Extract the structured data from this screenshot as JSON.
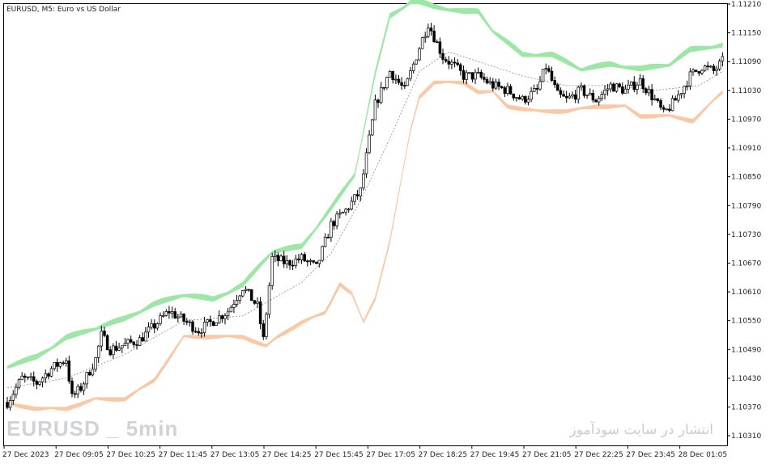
{
  "chart_title": "EURUSD, M5:  Euro vs US Dollar",
  "watermark_left": "EURUSD _ 5min",
  "watermark_right": "انتشار در سایت سودآموز",
  "colors": {
    "upper_band": "#9de6a6",
    "lower_band": "#f9c8a6",
    "candle": "#000000",
    "midline": "#8a8a8a",
    "frame": "#000000"
  },
  "chart_data": {
    "type": "candlestick",
    "symbol": "EURUSD",
    "timeframe": "M5",
    "ylim": [
      1.1029,
      1.1121
    ],
    "y_ticks": [
      1.1121,
      1.1115,
      1.1109,
      1.1103,
      1.1097,
      1.1091,
      1.1085,
      1.1079,
      1.1073,
      1.1067,
      1.1061,
      1.1055,
      1.1049,
      1.1043,
      1.1037,
      1.1031
    ],
    "x_ticks": [
      "27 Dec 2023",
      "27 Dec 09:05",
      "27 Dec 10:25",
      "27 Dec 11:45",
      "27 Dec 13:05",
      "27 Dec 14:25",
      "27 Dec 15:45",
      "27 Dec 17:05",
      "27 Dec 18:25",
      "27 Dec 19:45",
      "27 Dec 21:05",
      "27 Dec 22:25",
      "27 Dec 23:45",
      "28 Dec 01:05"
    ],
    "close_path": [
      [
        0,
        1.1038
      ],
      [
        5,
        1.1043
      ],
      [
        10,
        1.1042
      ],
      [
        15,
        1.1045
      ],
      [
        20,
        1.1047
      ],
      [
        22,
        1.1039
      ],
      [
        25,
        1.1041
      ],
      [
        30,
        1.1047
      ],
      [
        32,
        1.1052
      ],
      [
        35,
        1.1049
      ],
      [
        40,
        1.105
      ],
      [
        45,
        1.1051
      ],
      [
        50,
        1.1054
      ],
      [
        55,
        1.1057
      ],
      [
        60,
        1.1055
      ],
      [
        65,
        1.1053
      ],
      [
        70,
        1.1055
      ],
      [
        75,
        1.1057
      ],
      [
        80,
        1.1062
      ],
      [
        85,
        1.1058
      ],
      [
        87,
        1.1051
      ],
      [
        90,
        1.1068
      ],
      [
        95,
        1.1067
      ],
      [
        100,
        1.1068
      ],
      [
        105,
        1.1066
      ],
      [
        110,
        1.1075
      ],
      [
        115,
        1.1078
      ],
      [
        120,
        1.1082
      ],
      [
        125,
        1.11
      ],
      [
        130,
        1.1107
      ],
      [
        135,
        1.1103
      ],
      [
        140,
        1.1112
      ],
      [
        143,
        1.1117
      ],
      [
        148,
        1.111
      ],
      [
        152,
        1.1108
      ],
      [
        155,
        1.1106
      ],
      [
        160,
        1.1106
      ],
      [
        165,
        1.1104
      ],
      [
        170,
        1.1103
      ],
      [
        175,
        1.1101
      ],
      [
        180,
        1.1103
      ],
      [
        183,
        1.1108
      ],
      [
        187,
        1.1102
      ],
      [
        190,
        1.1101
      ],
      [
        195,
        1.1103
      ],
      [
        200,
        1.1101
      ],
      [
        205,
        1.1104
      ],
      [
        210,
        1.1103
      ],
      [
        215,
        1.1105
      ],
      [
        220,
        1.1101
      ],
      [
        223,
        1.1098
      ],
      [
        227,
        1.1101
      ],
      [
        232,
        1.1106
      ],
      [
        236,
        1.1108
      ],
      [
        240,
        1.1107
      ],
      [
        243,
        1.1109
      ]
    ],
    "upper_band": [
      [
        0,
        1.1045
      ],
      [
        10,
        1.1047
      ],
      [
        20,
        1.1051
      ],
      [
        30,
        1.1053
      ],
      [
        40,
        1.1055
      ],
      [
        50,
        1.1058
      ],
      [
        60,
        1.106
      ],
      [
        70,
        1.1059
      ],
      [
        80,
        1.1062
      ],
      [
        90,
        1.1069
      ],
      [
        100,
        1.107
      ],
      [
        110,
        1.1078
      ],
      [
        118,
        1.1085
      ],
      [
        125,
        1.1106
      ],
      [
        130,
        1.1118
      ],
      [
        137,
        1.1121
      ],
      [
        140,
        1.1121
      ],
      [
        145,
        1.112
      ],
      [
        155,
        1.1119
      ],
      [
        160,
        1.1119
      ],
      [
        165,
        1.1115
      ],
      [
        175,
        1.111
      ],
      [
        185,
        1.111
      ],
      [
        195,
        1.1107
      ],
      [
        205,
        1.1108
      ],
      [
        215,
        1.1107
      ],
      [
        225,
        1.1108
      ],
      [
        232,
        1.1111
      ],
      [
        243,
        1.1112
      ]
    ],
    "lower_band": [
      [
        0,
        1.1038
      ],
      [
        10,
        1.1037
      ],
      [
        20,
        1.1037
      ],
      [
        30,
        1.1039
      ],
      [
        40,
        1.1039
      ],
      [
        50,
        1.1043
      ],
      [
        60,
        1.1052
      ],
      [
        70,
        1.1052
      ],
      [
        80,
        1.1052
      ],
      [
        88,
        1.105
      ],
      [
        92,
        1.1052
      ],
      [
        100,
        1.1055
      ],
      [
        108,
        1.1057
      ],
      [
        113,
        1.1063
      ],
      [
        117,
        1.1061
      ],
      [
        121,
        1.1055
      ],
      [
        125,
        1.106
      ],
      [
        130,
        1.1072
      ],
      [
        137,
        1.1095
      ],
      [
        140,
        1.1102
      ],
      [
        145,
        1.1105
      ],
      [
        155,
        1.1105
      ],
      [
        160,
        1.1103
      ],
      [
        165,
        1.1103
      ],
      [
        170,
        1.11
      ],
      [
        180,
        1.1099
      ],
      [
        190,
        1.1099
      ],
      [
        200,
        1.11
      ],
      [
        205,
        1.11
      ],
      [
        210,
        1.11
      ],
      [
        215,
        1.1098
      ],
      [
        225,
        1.1098
      ],
      [
        233,
        1.1097
      ],
      [
        243,
        1.1103
      ]
    ],
    "band_thickness": {
      "upper": 8e-05,
      "lower": 6e-05
    },
    "midline": [
      [
        0,
        1.1041
      ],
      [
        20,
        1.1043
      ],
      [
        40,
        1.1048
      ],
      [
        60,
        1.1055
      ],
      [
        80,
        1.1056
      ],
      [
        100,
        1.1063
      ],
      [
        110,
        1.1069
      ],
      [
        120,
        1.108
      ],
      [
        130,
        1.1093
      ],
      [
        140,
        1.1107
      ],
      [
        150,
        1.1111
      ],
      [
        160,
        1.1109
      ],
      [
        175,
        1.1106
      ],
      [
        190,
        1.1104
      ],
      [
        205,
        1.1104
      ],
      [
        220,
        1.1103
      ],
      [
        235,
        1.1104
      ],
      [
        243,
        1.1107
      ]
    ],
    "bars": 244
  }
}
